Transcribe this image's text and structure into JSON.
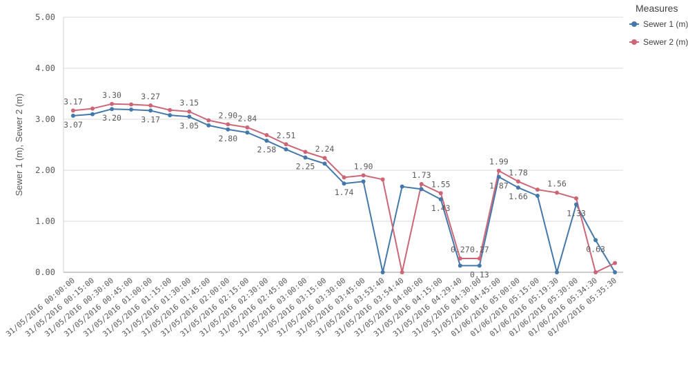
{
  "chart_data": {
    "type": "line",
    "ylabel": "Sewer 1 (m), Sewer 2 (m)",
    "ylim": [
      0,
      5
    ],
    "yticks": [
      "0.00",
      "1.00",
      "2.00",
      "3.00",
      "4.00",
      "5.00"
    ],
    "grid": true,
    "legend_position": "right",
    "legend_title": "Measures",
    "categories": [
      "31/05/2016 00:00:00",
      "31/05/2016 00:15:00",
      "31/05/2016 00:30:00",
      "31/05/2016 00:45:00",
      "31/05/2016 01:00:00",
      "31/05/2016 01:15:00",
      "31/05/2016 01:30:00",
      "31/05/2016 01:45:00",
      "31/05/2016 02:00:00",
      "31/05/2016 02:15:00",
      "31/05/2016 02:30:00",
      "31/05/2016 02:45:00",
      "31/05/2016 03:00:00",
      "31/05/2016 03:15:00",
      "31/05/2016 03:30:00",
      "31/05/2016 03:45:00",
      "31/05/2016 03:53:40",
      "31/05/2016 03:54:40",
      "31/05/2016 04:00:00",
      "31/05/2016 04:15:00",
      "31/05/2016 04:29:40",
      "31/05/2016 04:30:00",
      "31/05/2016 04:45:00",
      "01/06/2016 05:00:00",
      "01/06/2016 05:15:00",
      "01/06/2016 05:19:30",
      "01/06/2016 05:30:00",
      "01/06/2016 05:34:30",
      "01/06/2016 05:35:30"
    ],
    "series": [
      {
        "name": "Sewer 1 (m)",
        "color": "#4477aa",
        "values": [
          3.07,
          3.1,
          3.2,
          3.19,
          3.17,
          3.08,
          3.05,
          2.88,
          2.8,
          2.74,
          2.58,
          2.41,
          2.25,
          2.13,
          1.74,
          1.78,
          0,
          1.68,
          1.63,
          1.43,
          0.13,
          0.13,
          1.87,
          1.66,
          1.5,
          0,
          1.33,
          0.63,
          0
        ],
        "labeled": [
          0,
          2,
          4,
          6,
          8,
          10,
          12,
          14,
          19,
          21,
          22,
          23,
          26,
          27
        ],
        "label_pos": "below"
      },
      {
        "name": "Sewer 2 (m)",
        "color": "#cc6677",
        "values": [
          3.17,
          3.21,
          3.3,
          3.29,
          3.27,
          3.18,
          3.15,
          2.98,
          2.9,
          2.84,
          2.69,
          2.51,
          2.36,
          2.24,
          1.86,
          1.9,
          1.82,
          0,
          1.73,
          1.55,
          0.27,
          0.27,
          1.99,
          1.78,
          1.62,
          1.56,
          1.45,
          0,
          0.18
        ],
        "labeled": [
          0,
          2,
          4,
          6,
          8,
          9,
          11,
          13,
          15,
          18,
          19,
          20,
          21,
          22,
          23,
          25
        ],
        "label_pos": "above"
      }
    ]
  }
}
